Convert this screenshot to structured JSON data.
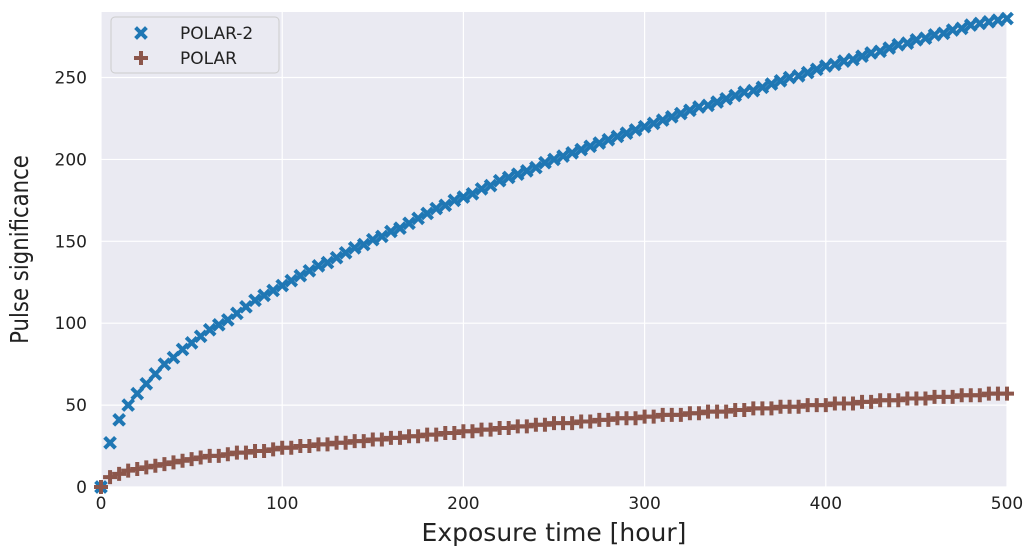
{
  "colors": {
    "plot_background": "#EAEAF2",
    "grid": "#FFFFFF",
    "polar2": "#1F77B4",
    "polar": "#8C564B",
    "text": "#222222"
  },
  "chart_data": {
    "type": "scatter",
    "title": "",
    "xlabel": "Exposure time [hour]",
    "ylabel": "Pulse significance",
    "xlim": [
      0,
      500
    ],
    "ylim": [
      0,
      290
    ],
    "xticks": [
      0,
      100,
      200,
      300,
      400,
      500
    ],
    "yticks": [
      0,
      50,
      100,
      150,
      200,
      250
    ],
    "grid": true,
    "legend_position": "top-left",
    "series": [
      {
        "name": "POLAR-2",
        "marker": "x-filled",
        "x": [
          0,
          5,
          10,
          15,
          20,
          25,
          30,
          35,
          40,
          45,
          50,
          55,
          60,
          65,
          70,
          75,
          80,
          85,
          90,
          95,
          100,
          105,
          110,
          115,
          120,
          125,
          130,
          135,
          140,
          145,
          150,
          155,
          160,
          165,
          170,
          175,
          180,
          185,
          190,
          195,
          200,
          205,
          210,
          215,
          220,
          225,
          230,
          235,
          240,
          245,
          250,
          255,
          260,
          265,
          270,
          275,
          280,
          285,
          290,
          295,
          300,
          305,
          310,
          315,
          320,
          325,
          330,
          335,
          340,
          345,
          350,
          355,
          360,
          365,
          370,
          375,
          380,
          385,
          390,
          395,
          400,
          405,
          410,
          415,
          420,
          425,
          430,
          435,
          440,
          445,
          450,
          455,
          460,
          465,
          470,
          475,
          480,
          485,
          490,
          495,
          500
        ],
        "y": [
          0,
          27,
          41,
          50,
          57,
          63,
          69,
          75,
          79,
          84,
          88,
          92,
          96,
          99,
          102,
          106,
          110,
          114,
          117,
          120,
          123,
          126,
          129,
          132,
          135,
          137,
          140,
          143,
          146,
          148,
          151,
          153,
          156,
          158,
          161,
          164,
          167,
          170,
          172,
          175,
          177,
          179,
          182,
          184,
          187,
          189,
          191,
          193,
          195,
          198,
          200,
          202,
          204,
          206,
          208,
          210,
          212,
          214,
          216,
          218,
          220,
          222,
          224,
          226,
          228,
          230,
          232,
          233,
          235,
          237,
          239,
          241,
          242,
          244,
          246,
          248,
          250,
          251,
          253,
          255,
          257,
          258,
          260,
          261,
          263,
          265,
          266,
          268,
          270,
          271,
          273,
          274,
          276,
          277,
          279,
          280,
          282,
          283,
          284,
          285,
          286
        ]
      },
      {
        "name": "POLAR",
        "marker": "plus-filled",
        "x": [
          0,
          5,
          10,
          15,
          20,
          25,
          30,
          35,
          40,
          45,
          50,
          55,
          60,
          65,
          70,
          75,
          80,
          85,
          90,
          95,
          100,
          105,
          110,
          115,
          120,
          125,
          130,
          135,
          140,
          145,
          150,
          155,
          160,
          165,
          170,
          175,
          180,
          185,
          190,
          195,
          200,
          205,
          210,
          215,
          220,
          225,
          230,
          235,
          240,
          245,
          250,
          255,
          260,
          265,
          270,
          275,
          280,
          285,
          290,
          295,
          300,
          305,
          310,
          315,
          320,
          325,
          330,
          335,
          340,
          345,
          350,
          355,
          360,
          365,
          370,
          375,
          380,
          385,
          390,
          395,
          400,
          405,
          410,
          415,
          420,
          425,
          430,
          435,
          440,
          445,
          450,
          455,
          460,
          465,
          470,
          475,
          480,
          485,
          490,
          495,
          500
        ],
        "y": [
          0,
          6,
          8,
          10,
          11,
          12,
          13,
          14,
          15,
          16,
          17,
          18,
          19,
          19,
          20,
          21,
          21,
          22,
          22,
          23,
          24,
          24,
          25,
          25,
          26,
          26,
          27,
          27,
          28,
          28,
          29,
          29,
          30,
          30,
          31,
          31,
          32,
          32,
          33,
          33,
          34,
          34,
          35,
          35,
          36,
          36,
          37,
          37,
          38,
          38,
          39,
          39,
          39,
          40,
          40,
          41,
          41,
          42,
          42,
          42,
          43,
          43,
          44,
          44,
          44,
          45,
          45,
          46,
          46,
          46,
          47,
          47,
          48,
          48,
          48,
          49,
          49,
          49,
          50,
          50,
          50,
          51,
          51,
          51,
          52,
          52,
          53,
          53,
          53,
          54,
          54,
          54,
          55,
          55,
          55,
          56,
          56,
          56,
          57,
          57,
          57
        ]
      }
    ]
  }
}
